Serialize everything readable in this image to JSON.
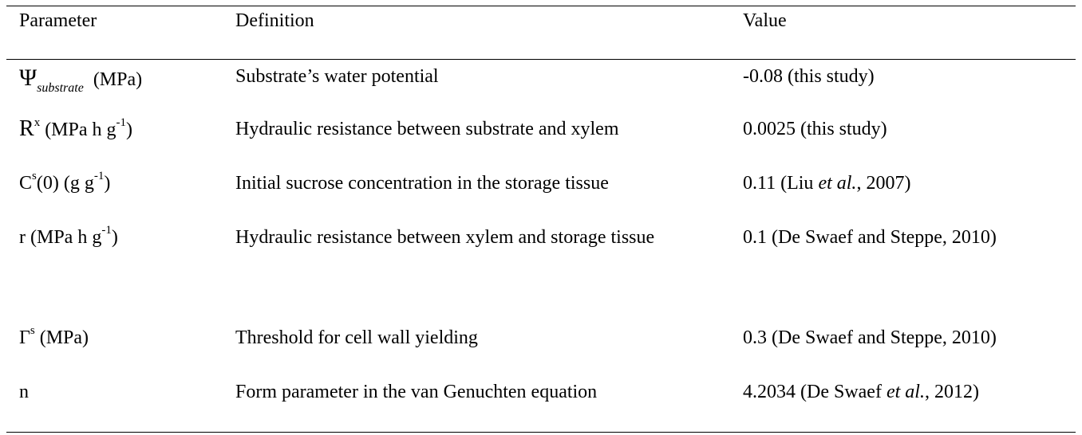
{
  "table": {
    "headers": {
      "parameter": "Parameter",
      "definition": "Definition",
      "value": "Value"
    },
    "rows": [
      {
        "param": {
          "symbol": "Ψ",
          "sub": "substrate",
          "unit": "(MPa)"
        },
        "definition": "Substrate’s water potential",
        "value": "-0.08 (this study)"
      },
      {
        "param": {
          "symbol": "R",
          "sup": "x",
          "unit": "(MPa h g",
          "unit_sup": "-1",
          "unit_close": ")"
        },
        "definition": "Hydraulic resistance between substrate and xylem",
        "value": "0.0025 (this study)"
      },
      {
        "param": {
          "symbol": "C",
          "sup": "s",
          "arg": "(0) (g g",
          "unit_sup": "-1",
          "unit_close": ")"
        },
        "definition": "Initial sucrose concentration in the storage tissue",
        "value": {
          "pre": "0.11 (Liu ",
          "italic": "et al.",
          "post": ", 2007)"
        }
      },
      {
        "param": {
          "symbol": "r",
          "unit": "(MPa h g",
          "unit_sup": "-1",
          "unit_close": ")"
        },
        "definition": "Hydraulic resistance between xylem and storage tissue",
        "value": "0.1 (De Swaef and Steppe, 2010)"
      },
      {
        "param": {
          "symbol": "Γ",
          "sup": "s",
          "unit": "(MPa)"
        },
        "definition": "Threshold for cell wall yielding",
        "value": "0.3 (De Swaef and Steppe, 2010)"
      },
      {
        "param": {
          "symbol": "n"
        },
        "definition": "Form parameter in the van Genuchten equation",
        "value": {
          "pre": "4.2034 (De Swaef ",
          "italic": "et al.",
          "post": ", 2012)"
        }
      }
    ]
  }
}
